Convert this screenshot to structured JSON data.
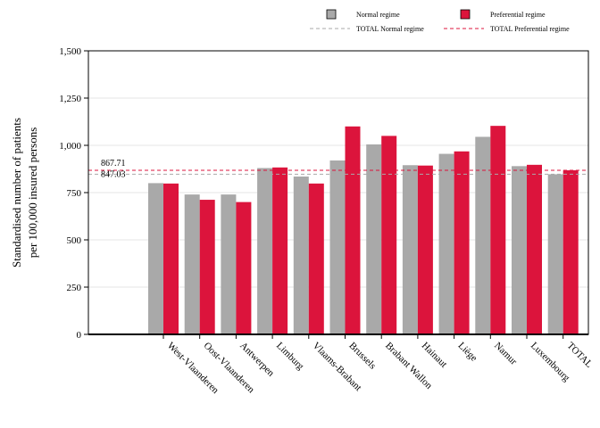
{
  "chart_data": {
    "type": "bar",
    "ylabel_lines": [
      "Standardised number of patients",
      "per 100,000 insured persons"
    ],
    "categories": [
      "West-Vlaanderen",
      "Oost-Vlaanderen",
      "Antwerpen",
      "Limburg",
      "Vlaams-Brabant",
      "Brussels",
      "Brabant Wallon",
      "Hainaut",
      "Liège",
      "Namur",
      "Luxembourg",
      "TOTAL"
    ],
    "series": [
      {
        "name": "Normal regime",
        "color": "#a9a9a9",
        "values": [
          800,
          740,
          740,
          880,
          835,
          920,
          1005,
          895,
          955,
          1045,
          890,
          847
        ]
      },
      {
        "name": "Preferential regime",
        "color": "#dc143c",
        "values": [
          798,
          712,
          700,
          883,
          798,
          1100,
          1050,
          893,
          968,
          1103,
          897,
          868
        ]
      }
    ],
    "reference_lines": [
      {
        "name": "TOTAL Normal regime",
        "value": 847.03,
        "label": "847.03",
        "color": "#a9a9a9",
        "style": "dashed"
      },
      {
        "name": "TOTAL Preferential regime",
        "value": 867.71,
        "label": "867.71",
        "color": "#dc143c",
        "style": "dashed"
      }
    ],
    "ylim": [
      0,
      1500
    ],
    "yticks": [
      {
        "value": 0,
        "label": "0"
      },
      {
        "value": 250,
        "label": "250"
      },
      {
        "value": 500,
        "label": "500"
      },
      {
        "value": 750,
        "label": "750"
      },
      {
        "value": 1000,
        "label": "1,000"
      },
      {
        "value": 1250,
        "label": "1,250"
      },
      {
        "value": 1500,
        "label": "1,500"
      }
    ],
    "grid": true,
    "legend_position": "top-right"
  }
}
